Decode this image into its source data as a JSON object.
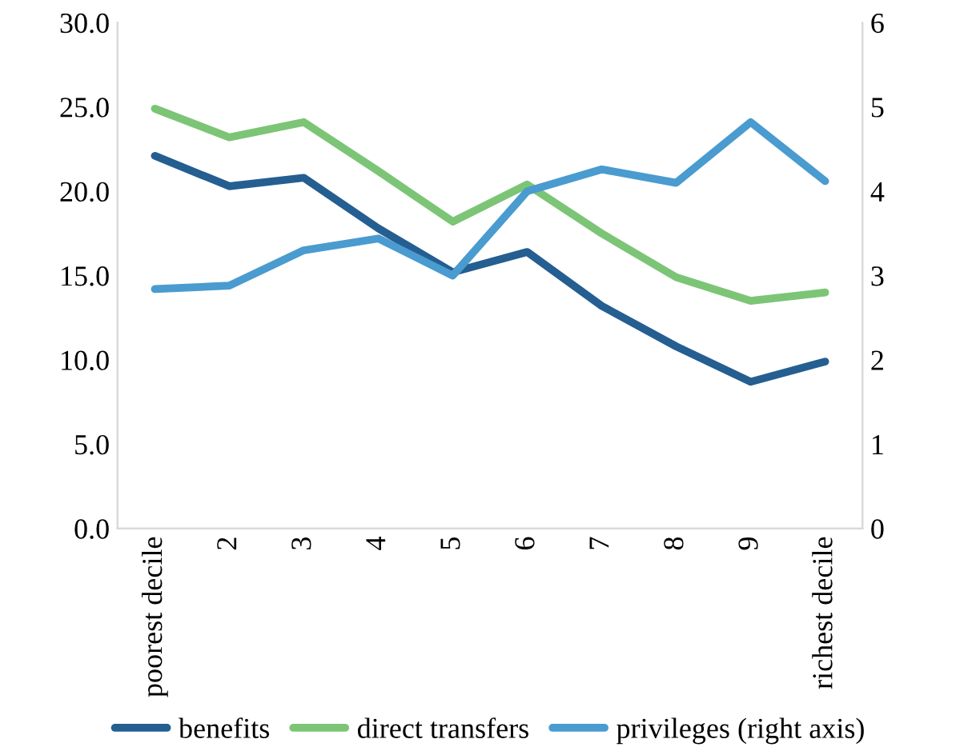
{
  "chart_data": {
    "type": "line",
    "categories": [
      "poorest decile",
      "2",
      "3",
      "4",
      "5",
      "6",
      "7",
      "8",
      "9",
      "richest decile"
    ],
    "series": [
      {
        "name": "benefits",
        "color": "#255e91",
        "values": [
          22.1,
          20.3,
          20.8,
          17.8,
          15.2,
          16.4,
          13.2,
          10.8,
          8.7,
          9.9
        ]
      },
      {
        "name": "direct transfers",
        "color": "#7cc576",
        "values": [
          24.9,
          23.2,
          24.1,
          21.2,
          18.2,
          20.4,
          17.5,
          14.9,
          13.5,
          14.0
        ]
      },
      {
        "name": "privileges (right axis)",
        "color": "#4a9bcf",
        "axis": "y2",
        "values": [
          2.84,
          2.88,
          3.3,
          3.44,
          3.0,
          4.0,
          4.26,
          4.1,
          4.82,
          4.12
        ]
      }
    ],
    "ylim": [
      0,
      30
    ],
    "yticks": [
      {
        "value": 0,
        "label": "0.0"
      },
      {
        "value": 5,
        "label": "5.0"
      },
      {
        "value": 10,
        "label": "10.0"
      },
      {
        "value": 15,
        "label": "15.0"
      },
      {
        "value": 20,
        "label": "20.0"
      },
      {
        "value": 25,
        "label": "25.0"
      },
      {
        "value": 30,
        "label": "30.0"
      }
    ],
    "y2lim": [
      0,
      6
    ],
    "y2ticks": [
      0,
      1,
      2,
      3,
      4,
      5,
      6
    ],
    "grid": false,
    "legend": "bottom",
    "marker": "none",
    "line_style": "solid"
  }
}
